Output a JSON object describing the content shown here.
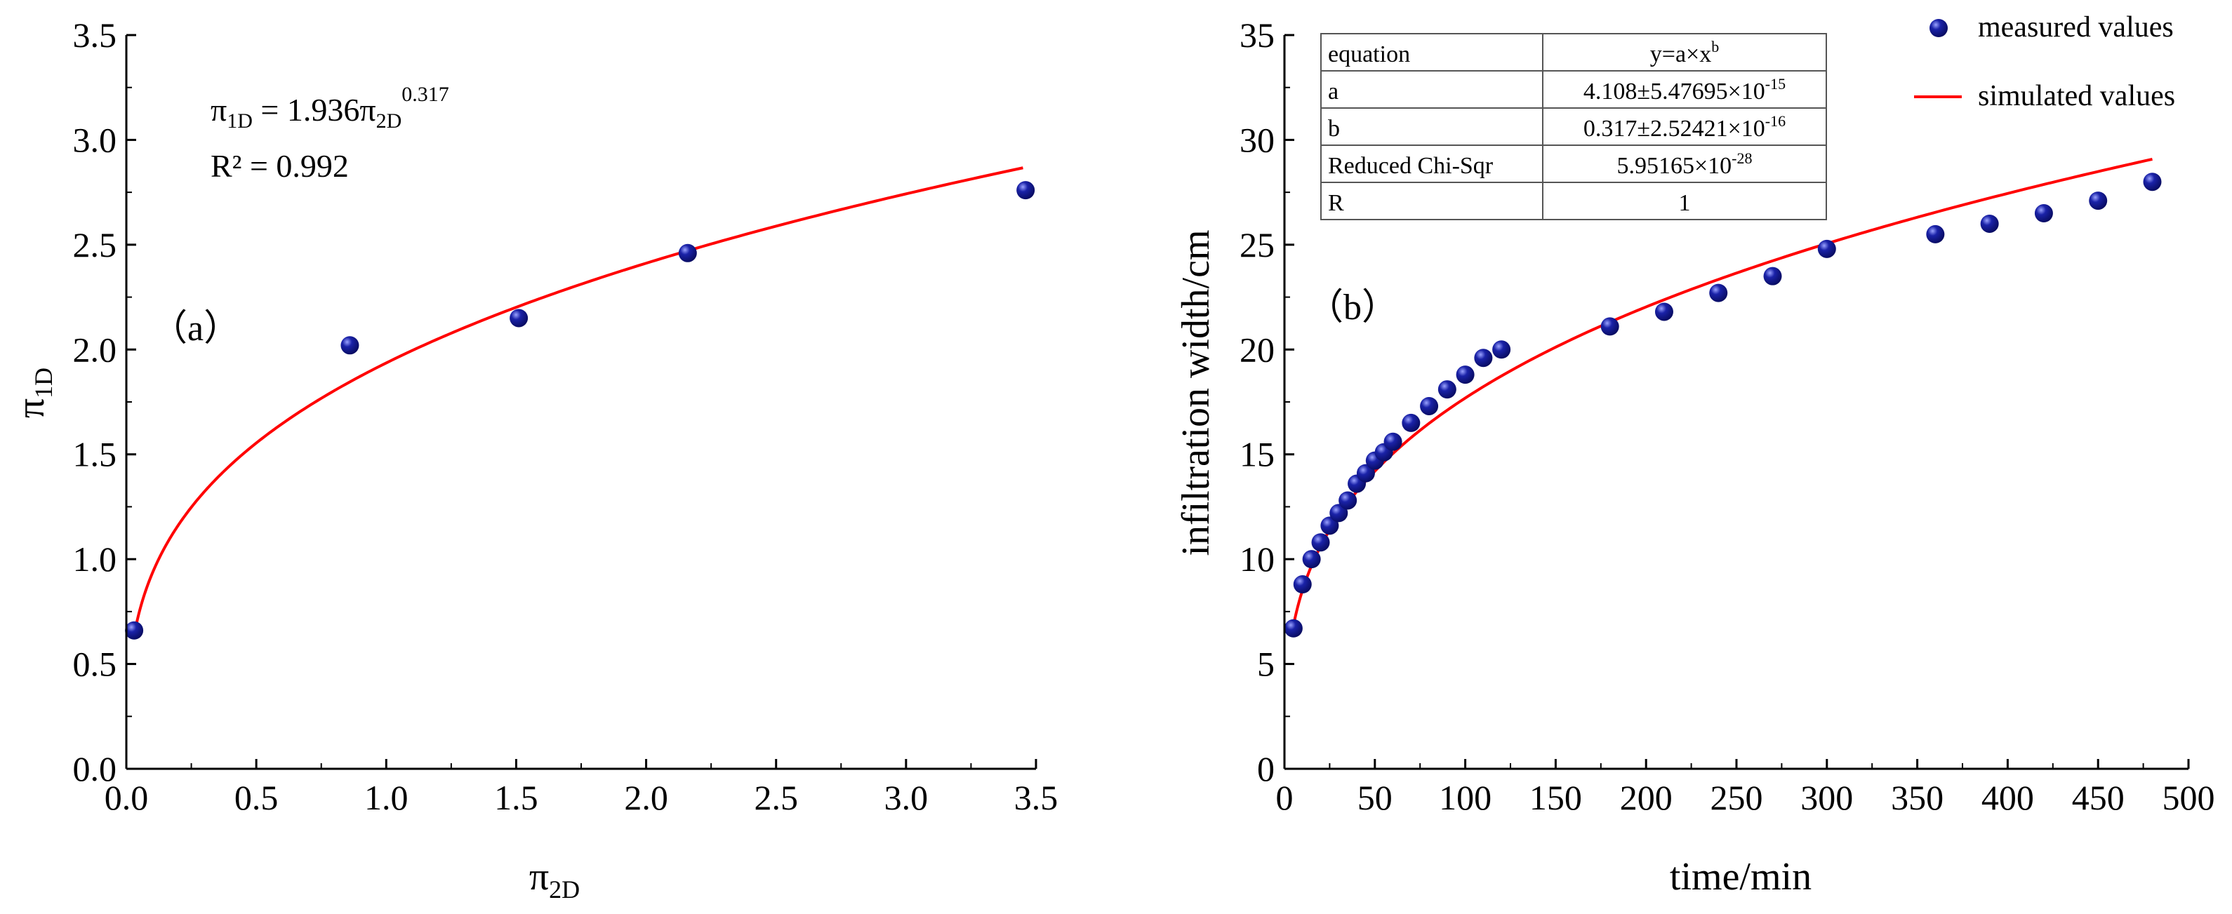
{
  "chart_data": [
    {
      "type": "scatter",
      "panel_label": "（a）",
      "xlabel": {
        "base": "π",
        "sub": "2D"
      },
      "ylabel": {
        "base": "π",
        "sub": "1D"
      },
      "xlim": [
        0,
        3.5
      ],
      "ylim": [
        0,
        3.5
      ],
      "xticks": [
        "0.0",
        "0.5",
        "1.0",
        "1.5",
        "2.0",
        "2.5",
        "3.0",
        "3.5"
      ],
      "yticks": [
        "0.0",
        "0.5",
        "1.0",
        "1.5",
        "2.0",
        "2.5",
        "3.0",
        "3.5"
      ],
      "annotation": {
        "lhs_base": "π",
        "lhs_sub": "1D",
        "eq": " = 1.936",
        "rhs_base": "π",
        "rhs_sub": "2D",
        "rhs_sup": "0.317",
        "r2": "R² = 0.992"
      },
      "series": [
        {
          "name": "measured",
          "x": [
            0.03,
            0.86,
            1.51,
            2.16,
            3.46
          ],
          "y": [
            0.66,
            2.02,
            2.15,
            2.46,
            2.76
          ]
        },
        {
          "name": "fit",
          "fit": {
            "a": 1.936,
            "b": 0.317,
            "x_start": 0.03,
            "x_end": 3.45
          }
        }
      ],
      "colors": {
        "marker": "#0a0f80",
        "fit": "#ff0000"
      }
    },
    {
      "type": "scatter",
      "panel_label": "（b）",
      "xlabel": "time/min",
      "ylabel": "infiltration width/cm",
      "xlim": [
        0,
        500
      ],
      "ylim": [
        0,
        35
      ],
      "xticks": [
        "0",
        "50",
        "100",
        "150",
        "200",
        "250",
        "300",
        "350",
        "400",
        "450",
        "500"
      ],
      "yticks": [
        "0",
        "5",
        "10",
        "15",
        "20",
        "25",
        "30",
        "35"
      ],
      "legend": [
        "measured values",
        "simulated values"
      ],
      "series": [
        {
          "name": "measured values",
          "x": [
            5,
            10,
            15,
            20,
            25,
            30,
            35,
            40,
            45,
            50,
            55,
            60,
            70,
            80,
            90,
            100,
            110,
            120,
            180,
            210,
            240,
            270,
            300,
            360,
            390,
            420,
            450,
            480
          ],
          "y": [
            6.7,
            8.8,
            10.0,
            10.8,
            11.6,
            12.2,
            12.8,
            13.6,
            14.1,
            14.7,
            15.1,
            15.6,
            16.5,
            17.3,
            18.1,
            18.8,
            19.6,
            20.0,
            21.1,
            21.8,
            22.7,
            23.5,
            24.8,
            25.5,
            26.0,
            26.5,
            27.1,
            28.0
          ]
        },
        {
          "name": "simulated values",
          "fit": {
            "a": 4.108,
            "b": 0.317,
            "x_start": 4,
            "x_end": 480
          }
        }
      ],
      "table": {
        "rows": [
          {
            "label": "equation",
            "value": "y=a×x",
            "sup": "b"
          },
          {
            "label": "a",
            "value": "4.108±5.47695×10",
            "sup": "-15"
          },
          {
            "label": "b",
            "value": "0.317±2.52421×10",
            "sup": "-16"
          },
          {
            "label": "Reduced Chi-Sqr",
            "value": "5.95165×10",
            "sup": "-28"
          },
          {
            "label": "R",
            "value": "1",
            "sup": ""
          }
        ]
      },
      "colors": {
        "marker": "#0a0f80",
        "fit": "#ff0000"
      }
    }
  ]
}
